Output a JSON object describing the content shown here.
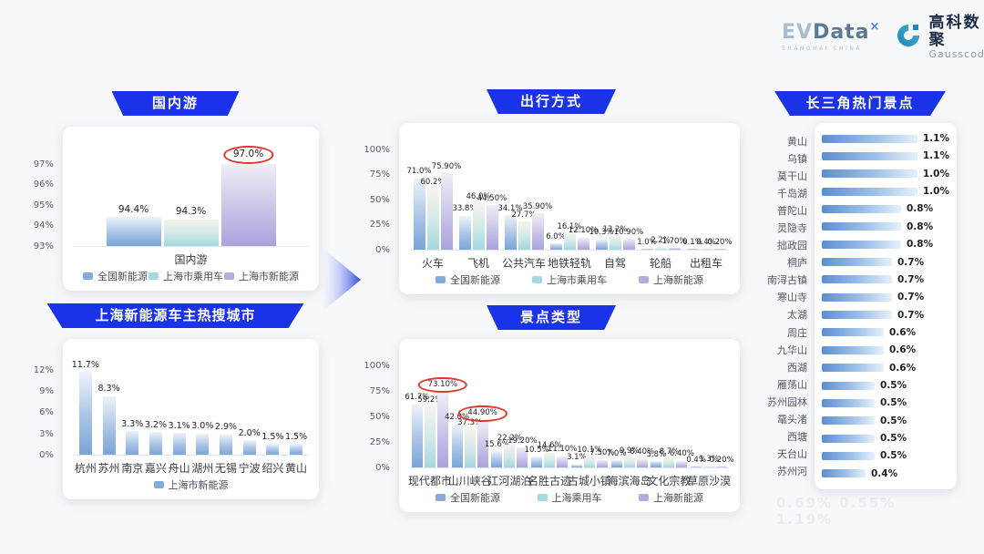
{
  "logo": {
    "evdata_ev": "EV",
    "evdata_data": "Data",
    "evdata_sup": "×",
    "evdata_sub": "SHANGHAI CHINA",
    "gausscode_cn": "高科数聚",
    "gausscode_en": "Gausscode"
  },
  "colors": {
    "banner_blue": "#1a33e8",
    "series_blue": "#7aa4d8",
    "series_teal": "#a5d7de",
    "series_purple": "#a9a3dc",
    "hbar_blue": "#5c8ecf",
    "highlight_red": "#e2372a"
  },
  "ghost_text": "0.69%  0.55%  1.19%",
  "chart_data": [
    {
      "id": "domestic",
      "type": "bar",
      "title": "国内游",
      "ymin": 93,
      "ymax": 97.6,
      "yticks": [
        97,
        96,
        95,
        94,
        93
      ],
      "grid": false,
      "legend_position": "bottom",
      "categories": [
        "国内游"
      ],
      "series": [
        {
          "name": "全国新能源",
          "color": "blue",
          "values": [
            94.4
          ],
          "labels": [
            "94.4%"
          ]
        },
        {
          "name": "上海市乘用车",
          "color": "teal",
          "values": [
            94.3
          ],
          "labels": [
            "94.3%"
          ]
        },
        {
          "name": "上海市新能源",
          "color": "purple",
          "values": [
            97.0
          ],
          "labels": [
            "97.0%"
          ],
          "circled": [
            true
          ]
        }
      ]
    },
    {
      "id": "cities",
      "type": "bar",
      "title": "上海新能源车主热搜城市",
      "ymin": 0,
      "ymax": 13.4,
      "yticks": [
        12,
        9,
        6,
        3,
        0
      ],
      "grid": false,
      "legend_position": "bottom",
      "categories": [
        "杭州",
        "苏州",
        "南京",
        "嘉兴",
        "舟山",
        "湖州",
        "无锡",
        "宁波",
        "绍兴",
        "黄山"
      ],
      "series": [
        {
          "name": "上海市新能源",
          "color": "blue",
          "values": [
            11.7,
            8.3,
            3.3,
            3.2,
            3.1,
            3.0,
            2.9,
            2.0,
            1.5,
            1.5
          ],
          "labels": [
            "11.7%",
            "8.3%",
            "3.3%",
            "3.2%",
            "3.1%",
            "3.0%",
            "2.9%",
            "2.0%",
            "1.5%",
            "1.5%"
          ]
        }
      ]
    },
    {
      "id": "travel",
      "type": "bar",
      "title": "出行方式",
      "ymin": 0,
      "ymax": 105,
      "yticks": [
        100,
        75,
        50,
        25,
        0
      ],
      "grid": false,
      "legend_position": "bottom",
      "categories": [
        "火车",
        "飞机",
        "公共汽车",
        "地铁轻轨",
        "自驾",
        "轮船",
        "出租车"
      ],
      "series": [
        {
          "name": "全国新能源",
          "color": "blue",
          "values": [
            71.0,
            33.8,
            34.1,
            6.0,
            10.3,
            1.0,
            0.1
          ],
          "labels": [
            "71.0%",
            "33.8%",
            "34.1%",
            "6.0%",
            "10.3%",
            "1.0%",
            "0.1%"
          ]
        },
        {
          "name": "上海市乘用车",
          "color": "teal",
          "values": [
            60.2,
            46.0,
            27.7,
            16.1,
            13.2,
            2.2,
            0.4
          ],
          "labels": [
            "60.2%",
            "46.0%",
            "27.7%",
            "16.1%",
            "13.2%",
            "2.2%",
            "0.4%"
          ]
        },
        {
          "name": "上海新能源",
          "color": "purple",
          "values": [
            75.9,
            44.5,
            35.9,
            12.1,
            10.9,
            1.7,
            0.2
          ],
          "labels": [
            "75.90%",
            "44.50%",
            "35.90%",
            "12.10%",
            "10.90%",
            "1.70%",
            "0.20%"
          ]
        }
      ]
    },
    {
      "id": "attractions",
      "type": "bar",
      "title": "景点类型",
      "ymin": 0,
      "ymax": 105,
      "yticks": [
        100,
        75,
        50,
        25,
        0
      ],
      "grid": false,
      "legend_position": "bottom",
      "categories": [
        "现代都市",
        "山川峡谷",
        "江河湖泊",
        "名胜古迹",
        "古城小镇",
        "海滨海岛",
        "文化宗教",
        "草原沙漠"
      ],
      "series": [
        {
          "name": "全国新能源",
          "color": "blue",
          "values": [
            61.7,
            42.0,
            15.6,
            10.5,
            3.1,
            7.0,
            5.8,
            0.4
          ],
          "labels": [
            "61.7%",
            "42.0%",
            "15.6%",
            "10.5%",
            "3.1%",
            "7.0%",
            "5.8%",
            "0.4%"
          ]
        },
        {
          "name": "上海乘用车",
          "color": "teal",
          "values": [
            59.2,
            37.3,
            22.2,
            14.6,
            10.1,
            9.9,
            8.7,
            1.3
          ],
          "labels": [
            "59.2%",
            "37.3%",
            "22.2%",
            "14.6%",
            "10.1%",
            "9.9%",
            "8.7%",
            "1.3%"
          ]
        },
        {
          "name": "上海新能源",
          "color": "purple",
          "values": [
            73.1,
            44.9,
            19.2,
            11.1,
            7.5,
            8.4,
            6.4,
            0.2
          ],
          "labels": [
            "73.10%",
            "44.90%",
            "19.20%",
            "11.10%",
            "7.50%",
            "8.40%",
            "6.40%",
            "0.20%"
          ],
          "circled": [
            true,
            true,
            false,
            false,
            false,
            false,
            false,
            false
          ]
        }
      ]
    },
    {
      "id": "hotspots",
      "type": "hbar",
      "title": "长三角热门景点",
      "xmax": 1.1,
      "categories": [
        "黄山",
        "乌镇",
        "莫干山",
        "千岛湖",
        "普陀山",
        "灵隐寺",
        "拙政园",
        "桐庐",
        "南浔古镇",
        "寒山寺",
        "太湖",
        "周庄",
        "九华山",
        "西湖",
        "雁荡山",
        "苏州园林",
        "鼋头渚",
        "西塘",
        "天台山",
        "苏州河"
      ],
      "values": [
        1.1,
        1.1,
        1.0,
        1.0,
        0.8,
        0.8,
        0.8,
        0.7,
        0.7,
        0.7,
        0.7,
        0.6,
        0.6,
        0.6,
        0.5,
        0.5,
        0.5,
        0.5,
        0.5,
        0.4
      ],
      "labels": [
        "1.1%",
        "1.1%",
        "1.0%",
        "1.0%",
        "0.8%",
        "0.8%",
        "0.8%",
        "0.7%",
        "0.7%",
        "0.7%",
        "0.7%",
        "0.6%",
        "0.6%",
        "0.6%",
        "0.5%",
        "0.5%",
        "0.5%",
        "0.5%",
        "0.5%",
        "0.4%"
      ]
    }
  ]
}
